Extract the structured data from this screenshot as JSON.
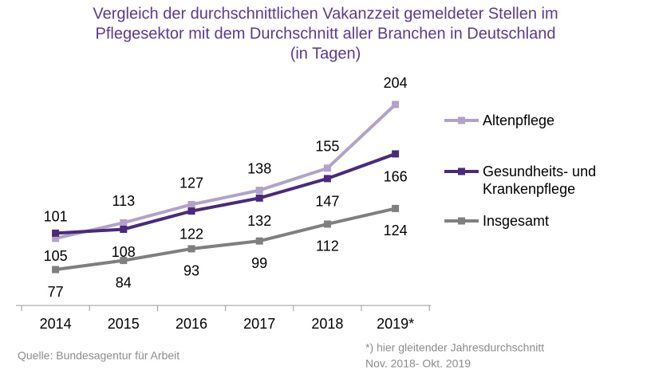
{
  "chart_data": {
    "type": "line",
    "title": [
      "Vergleich der durchschnittlichen Vakanzzeit gemeldeter Stellen im",
      "Pflegesektor mit dem Durchschnitt aller Branchen in Deutschland",
      "(in Tagen)"
    ],
    "categories": [
      "2014",
      "2015",
      "2016",
      "2017",
      "2018",
      "2019*"
    ],
    "series": [
      {
        "name": "Altenpflege",
        "color": "#b3a2c7",
        "values": [
          101,
          113,
          127,
          138,
          155,
          204
        ]
      },
      {
        "name": "Gesundheits- und Krankenpflege",
        "color": "#4b2a7b",
        "values": [
          105,
          108,
          122,
          132,
          147,
          166
        ]
      },
      {
        "name": "Insgesamt",
        "color": "#7f7f7f",
        "values": [
          77,
          84,
          93,
          99,
          112,
          124
        ]
      }
    ],
    "source": "Quelle:  Bundesagentur  für Arbeit",
    "footnote": [
      "*) hier gleitender  Jahresdurchschnitt",
      "Nov.  2018- Okt. 2019"
    ],
    "legend": "right"
  }
}
